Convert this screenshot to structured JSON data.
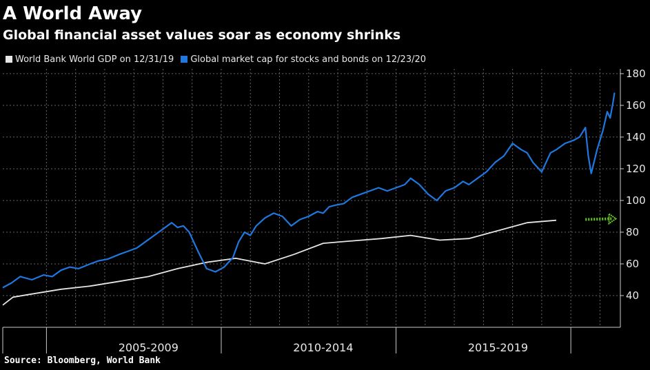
{
  "title": "A World Away",
  "subtitle": "Global financial asset values soar as economy shrinks",
  "source": "Source: Bloomberg, World Bank",
  "colors": {
    "background": "#000000",
    "gdp_line": "#e6e6e6",
    "market_cap_line": "#1f78e0",
    "projection_arrow": "#66cc22",
    "grid": "#666666"
  },
  "chart_data": {
    "type": "line",
    "title": "A World Away",
    "subtitle": "Global financial asset values soar as economy shrinks",
    "ylim": [
      20,
      183
    ],
    "yticks": [
      40,
      60,
      80,
      100,
      120,
      140,
      160,
      180
    ],
    "y_axis_side": "right",
    "xlim": [
      2000.0,
      2021.2
    ],
    "x_period_labels": [
      {
        "label": "2005-2009",
        "center": 2005.0
      },
      {
        "label": "2010-2014",
        "center": 2011.0
      },
      {
        "label": "2015-2019",
        "center": 2017.0
      }
    ],
    "x_minor_ticks": [
      2001.5,
      2007.5,
      2013.5,
      2019.5
    ],
    "grid": true,
    "legend_position": "top-left",
    "series": [
      {
        "name": "World Bank World GDP on 12/31/19",
        "color": "#e6e6e6",
        "style": "line",
        "x": [
          2000.0,
          2000.35,
          2001.0,
          2002.0,
          2003.0,
          2004.0,
          2005.0,
          2006.0,
          2007.0,
          2008.0,
          2009.0,
          2010.0,
          2011.0,
          2012.0,
          2013.0,
          2014.0,
          2015.0,
          2016.0,
          2017.0,
          2018.0,
          2019.0
        ],
        "values": [
          34,
          39,
          41,
          44,
          46,
          49,
          52,
          57,
          61,
          63.5,
          60,
          66,
          73,
          74.5,
          76,
          78,
          75,
          76,
          81,
          86,
          87.5
        ]
      },
      {
        "name": "Global market cap for stocks and bonds on 12/23/20",
        "color": "#1f78e0",
        "style": "line",
        "x": [
          2000.0,
          2000.3,
          2000.6,
          2001.0,
          2001.4,
          2001.7,
          2002.0,
          2002.3,
          2002.6,
          2003.0,
          2003.3,
          2003.6,
          2004.0,
          2004.3,
          2004.6,
          2004.9,
          2005.2,
          2005.5,
          2005.8,
          2006.0,
          2006.2,
          2006.4,
          2006.7,
          2007.0,
          2007.3,
          2007.6,
          2007.9,
          2008.1,
          2008.3,
          2008.5,
          2008.7,
          2009.0,
          2009.3,
          2009.6,
          2009.9,
          2010.2,
          2010.5,
          2010.8,
          2011.0,
          2011.2,
          2011.4,
          2011.7,
          2012.0,
          2012.3,
          2012.6,
          2012.9,
          2013.2,
          2013.5,
          2013.8,
          2014.0,
          2014.3,
          2014.6,
          2014.9,
          2015.2,
          2015.5,
          2015.8,
          2016.0,
          2016.3,
          2016.6,
          2016.9,
          2017.2,
          2017.5,
          2017.8,
          2018.0,
          2018.2,
          2018.5,
          2018.8,
          2019.0,
          2019.3,
          2019.6,
          2019.8,
          2020.0,
          2020.1,
          2020.2,
          2020.4,
          2020.6,
          2020.75,
          2020.85,
          2020.95,
          2021.0
        ],
        "values": [
          45,
          48,
          52,
          50,
          53,
          52,
          56,
          58,
          57,
          60,
          62,
          63,
          66,
          68,
          70,
          74,
          78,
          82,
          86,
          83,
          84,
          80,
          68,
          57,
          55,
          58,
          64,
          74,
          80,
          78,
          84,
          89,
          92,
          90,
          84,
          88,
          90,
          93,
          92,
          96,
          97,
          98,
          102,
          104,
          106,
          108,
          106,
          108,
          110,
          114,
          110,
          104,
          100,
          106,
          108,
          112,
          110,
          114,
          118,
          124,
          128,
          136,
          132,
          130,
          124,
          118,
          130,
          132,
          136,
          138,
          140,
          146,
          128,
          117,
          132,
          144,
          156,
          152,
          162,
          168
        ]
      },
      {
        "name": "",
        "color": "#66cc22",
        "style": "dotted-arrow",
        "x": [
          2019.0,
          2020.0,
          2021.0
        ],
        "values": [
          87.5,
          88,
          88.5
        ]
      }
    ]
  }
}
